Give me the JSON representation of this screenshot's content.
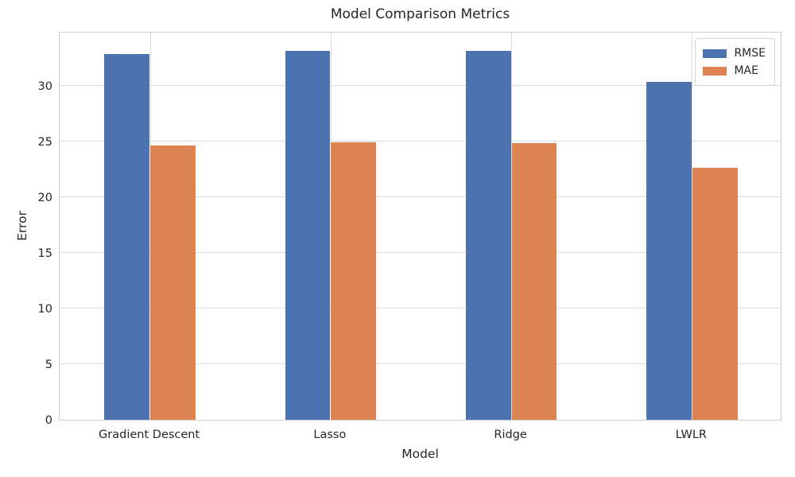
{
  "chart_data": {
    "type": "bar",
    "title": "Model Comparison Metrics",
    "xlabel": "Model",
    "ylabel": "Error",
    "categories": [
      "Gradient Descent",
      "Lasso",
      "Ridge",
      "LWLR"
    ],
    "series": [
      {
        "name": "RMSE",
        "color": "#4c72b0",
        "values": [
          32.85,
          33.15,
          33.15,
          30.35
        ]
      },
      {
        "name": "MAE",
        "color": "#dd8452",
        "values": [
          24.65,
          24.9,
          24.85,
          22.65
        ]
      }
    ],
    "ylim": [
      0,
      34.93
    ],
    "yticks": [
      0,
      5,
      10,
      15,
      20,
      25,
      30
    ],
    "grid": true,
    "legend_position": "upper right",
    "colors": {
      "grid": "#dcdcdc",
      "spine": "#cccccc",
      "text": "#262626",
      "background": "#ffffff"
    }
  }
}
